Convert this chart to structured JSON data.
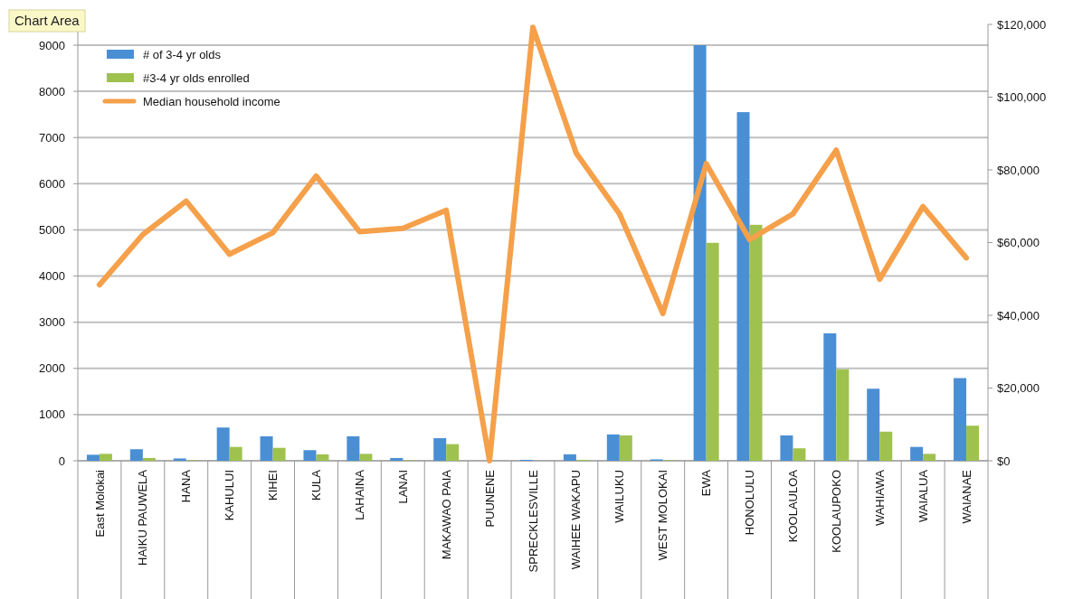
{
  "chart_data": {
    "type": "bar",
    "categories": [
      "East Molokai",
      "HAIKU PAUWELA",
      "HANA",
      "KAHULUI",
      "KIHEI",
      "KULA",
      "LAHAINA",
      "LANAI",
      "MAKAWAO PAIA",
      "PUUNENE",
      "SPRECKLESVILLE",
      "WAIHEE WAKAPU",
      "WAILUKU",
      "WEST MOLOKAI",
      "EWA",
      "HONOLULU",
      "KOOLAULOA",
      "KOOLAUPOKO",
      "WAHIAWA",
      "WAIALUA",
      "WAIANAE"
    ],
    "series": [
      {
        "name": "# of 3-4 yr olds",
        "color": "#4a8fd4",
        "values": [
          130,
          250,
          50,
          720,
          530,
          230,
          530,
          60,
          490,
          0,
          20,
          140,
          570,
          30,
          9000,
          7550,
          550,
          2760,
          1560,
          300,
          1790
        ]
      },
      {
        "name": "#3-4 yr olds enrolled",
        "color": "#9fc24f",
        "values": [
          150,
          60,
          10,
          300,
          280,
          140,
          150,
          10,
          360,
          0,
          0,
          20,
          550,
          10,
          4720,
          5110,
          270,
          1980,
          630,
          150,
          760
        ]
      },
      {
        "name": "Median household income",
        "type": "line",
        "axis": "y2",
        "color": "#f5a04a",
        "values": [
          48400,
          62200,
          71400,
          56800,
          62700,
          78300,
          63000,
          63900,
          68900,
          0,
          119200,
          84600,
          67900,
          40500,
          81700,
          60800,
          67900,
          85400,
          49900,
          69900,
          55800
        ]
      }
    ],
    "ylim": [
      0,
      9450
    ],
    "yticks": [
      0,
      1000,
      2000,
      3000,
      4000,
      5000,
      6000,
      7000,
      8000,
      9000
    ],
    "y2lim": [
      0,
      120000
    ],
    "y2ticks": [
      {
        "value": 0,
        "label": "$0"
      },
      {
        "value": 20000,
        "label": "$20,000"
      },
      {
        "value": 40000,
        "label": "$40,000"
      },
      {
        "value": 60000,
        "label": "$60,000"
      },
      {
        "value": 80000,
        "label": "$80,000"
      },
      {
        "value": 100000,
        "label": "$100,000"
      },
      {
        "value": 120000,
        "label": "$120,000"
      }
    ],
    "grid": "y",
    "legend": "top left",
    "annotations": [
      "Chart Area"
    ]
  }
}
